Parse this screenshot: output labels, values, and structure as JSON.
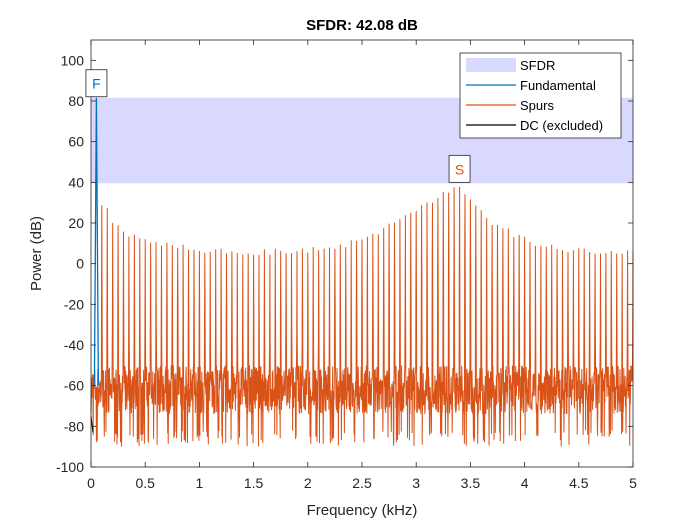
{
  "chart_data": {
    "type": "line",
    "title": "SFDR:  42.08 dB",
    "xlabel": "Frequency (kHz)",
    "ylabel": "Power (dB)",
    "xlim": [
      0,
      5
    ],
    "ylim": [
      -100,
      110
    ],
    "xticks": [
      "0",
      "0.5",
      "1",
      "1.5",
      "2",
      "2.5",
      "3",
      "3.5",
      "4",
      "4.5",
      "5"
    ],
    "yticks": [
      "100",
      "80",
      "60",
      "40",
      "20",
      "0",
      "-20",
      "-40",
      "-60",
      "-80",
      "-100"
    ],
    "grid": false,
    "legend_position": "top-right",
    "sfdr_band": {
      "low": 39.5,
      "high": 81.6
    },
    "fundamental": {
      "freq": 0.05,
      "power": 81.6,
      "base": -60
    },
    "dc": {
      "freq": 0.0,
      "power": -75
    },
    "spur_peak": {
      "freq": 3.4,
      "power": 39.5
    },
    "spur_harmonics": {
      "spacing": 0.05,
      "first_freq": 0.1,
      "peak_envelope": [
        [
          0.1,
          29
        ],
        [
          0.15,
          28
        ],
        [
          0.2,
          22
        ],
        [
          0.3,
          17
        ],
        [
          0.5,
          13
        ],
        [
          0.8,
          10
        ],
        [
          1.0,
          8
        ],
        [
          1.5,
          7
        ],
        [
          2.0,
          8
        ],
        [
          2.3,
          10
        ],
        [
          2.6,
          16
        ],
        [
          2.9,
          24
        ],
        [
          3.1,
          31
        ],
        [
          3.3,
          37
        ],
        [
          3.4,
          39.5
        ],
        [
          3.5,
          33
        ],
        [
          3.7,
          22
        ],
        [
          3.9,
          16
        ],
        [
          4.1,
          11
        ],
        [
          4.4,
          8
        ],
        [
          4.7,
          7
        ],
        [
          5.0,
          7
        ]
      ],
      "floor_range": [
        -90,
        -45
      ],
      "floor_typical": -62
    },
    "series": [
      {
        "name": "SFDR",
        "color": "#d9d9ff",
        "style": "band"
      },
      {
        "name": "Fundamental",
        "color": "#0072bd",
        "style": "line"
      },
      {
        "name": "Spurs",
        "color": "#d95319",
        "style": "line"
      },
      {
        "name": "DC (excluded)",
        "color": "#000000",
        "style": "line"
      }
    ],
    "markers": [
      {
        "label": "F",
        "color": "#0072bd"
      },
      {
        "label": "S",
        "color": "#d95319"
      }
    ]
  }
}
